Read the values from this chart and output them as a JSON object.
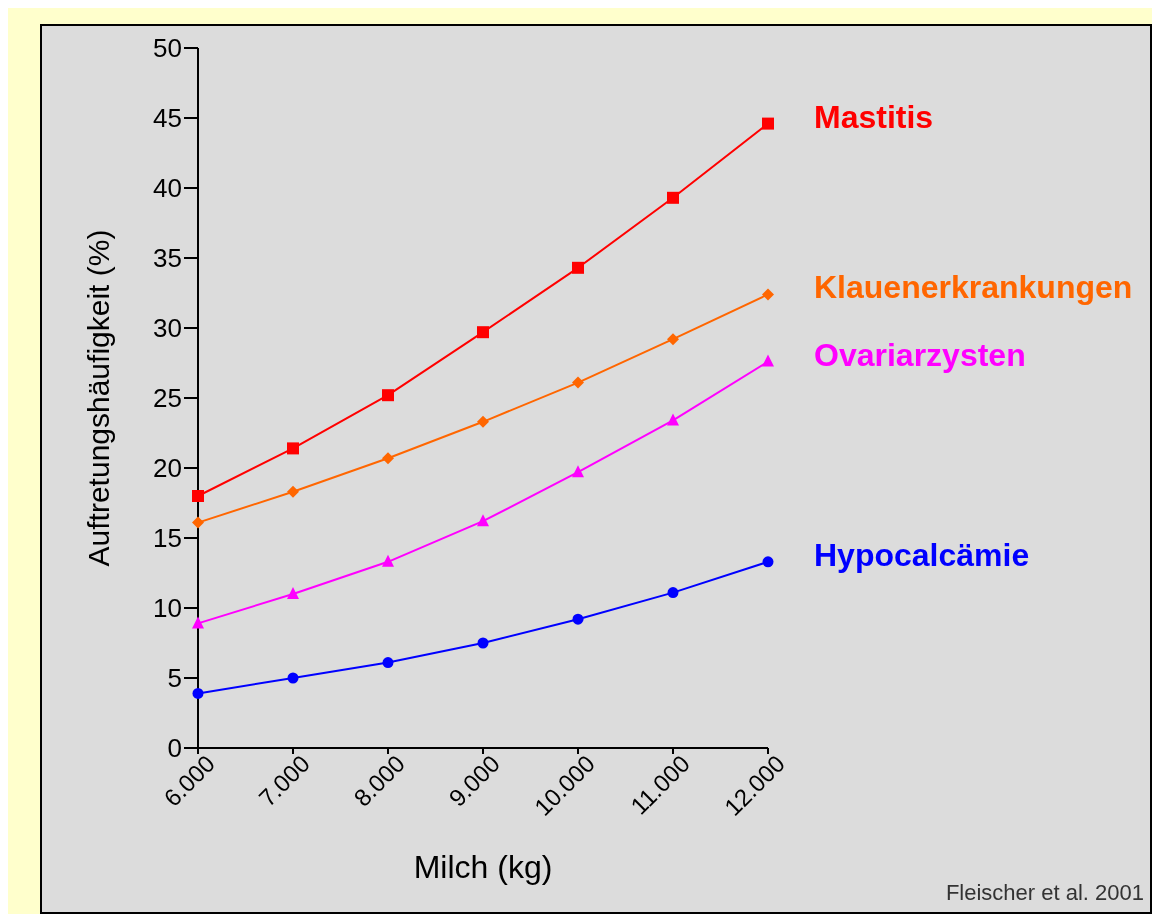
{
  "chart_data": {
    "type": "line",
    "xlabel": "Milch (kg)",
    "ylabel": "Auftretungshäufigkeit (%)",
    "categories": [
      "6.000",
      "7.000",
      "8.000",
      "9.000",
      "10.000",
      "11.000",
      "12.000"
    ],
    "series": [
      {
        "name": "Mastitis",
        "color": "#ff0000",
        "marker": "square",
        "values": [
          18,
          21.4,
          25.2,
          29.7,
          34.3,
          39.3,
          44.6
        ]
      },
      {
        "name": "Klauenerkrankungen",
        "color": "#ff6600",
        "marker": "diamond",
        "values": [
          16.1,
          18.3,
          20.7,
          23.3,
          26.1,
          29.2,
          32.4
        ]
      },
      {
        "name": "Ovariarzysten",
        "color": "#ff00ff",
        "marker": "triangle",
        "values": [
          8.9,
          11,
          13.3,
          16.2,
          19.7,
          23.4,
          27.6
        ]
      },
      {
        "name": "Hypocalcämie",
        "color": "#0000ff",
        "marker": "circle",
        "values": [
          3.9,
          5,
          6.1,
          7.5,
          9.2,
          11.1,
          13.3
        ]
      }
    ],
    "ylim": [
      0,
      50
    ],
    "yticks": [
      0,
      5,
      10,
      15,
      20,
      25,
      30,
      35,
      40,
      45,
      50
    ],
    "grid": false,
    "legend": false,
    "line_style": "solid",
    "annotations": [
      "Fleischer et al. 2001"
    ]
  }
}
